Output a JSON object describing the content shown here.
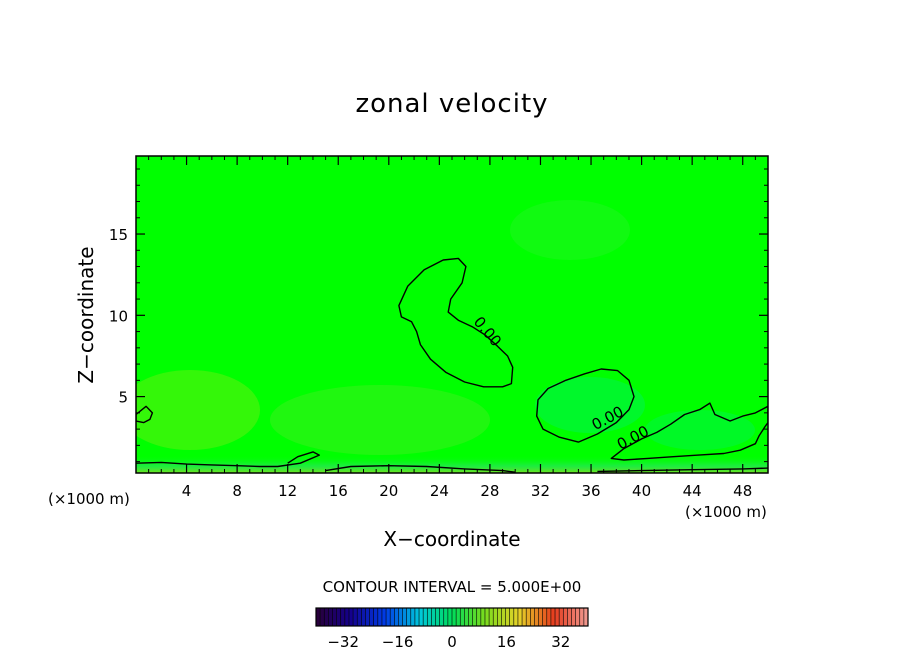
{
  "chart_data": {
    "type": "heatmap",
    "title": "zonal velocity",
    "xlabel": "X−coordinate",
    "ylabel": "Z−coordinate",
    "x_unit_left": "(×1000 m)",
    "x_unit_right": "(×1000 m)",
    "xlim": [
      0,
      50
    ],
    "ylim": [
      0.3,
      19.8
    ],
    "x_ticks": [
      4,
      8,
      12,
      16,
      20,
      24,
      28,
      32,
      36,
      40,
      44,
      48
    ],
    "x_tick_labels": [
      "4",
      "8",
      "12",
      "16",
      "20",
      "24",
      "28",
      "32",
      "36",
      "40",
      "44",
      "48"
    ],
    "y_ticks": [
      5,
      10,
      15
    ],
    "y_tick_labels": [
      "5",
      "10",
      "15"
    ],
    "background_value": 2,
    "contour_label": "0.00",
    "zero_contours": [
      {
        "name": "upper-lobe",
        "points": [
          [
            20.8,
            10.6
          ],
          [
            21.5,
            11.8
          ],
          [
            22.8,
            12.8
          ],
          [
            24.3,
            13.4
          ],
          [
            25.5,
            13.5
          ],
          [
            26.1,
            13.0
          ],
          [
            25.8,
            12.0
          ],
          [
            24.9,
            11.0
          ],
          [
            24.7,
            10.2
          ],
          [
            25.5,
            9.7
          ],
          [
            26.6,
            9.3
          ],
          [
            27.6,
            8.8
          ],
          [
            28.6,
            8.1
          ],
          [
            29.4,
            7.5
          ],
          [
            29.8,
            6.8
          ],
          [
            29.7,
            5.8
          ],
          [
            29.0,
            5.6
          ],
          [
            27.5,
            5.6
          ],
          [
            26.0,
            5.9
          ],
          [
            24.5,
            6.5
          ],
          [
            23.3,
            7.3
          ],
          [
            22.5,
            8.2
          ],
          [
            22.2,
            9.0
          ],
          [
            21.8,
            9.6
          ],
          [
            21.0,
            9.9
          ]
        ],
        "label_at": [
          27.5,
          8.8
        ]
      },
      {
        "name": "lower-right-lobe",
        "points": [
          [
            31.8,
            4.8
          ],
          [
            32.6,
            5.5
          ],
          [
            34.0,
            6.0
          ],
          [
            35.5,
            6.4
          ],
          [
            36.8,
            6.7
          ],
          [
            38.1,
            6.6
          ],
          [
            39.0,
            6.0
          ],
          [
            39.4,
            5.0
          ],
          [
            39.0,
            4.2
          ],
          [
            38.0,
            3.4
          ],
          [
            36.5,
            2.7
          ],
          [
            35.0,
            2.2
          ],
          [
            33.5,
            2.5
          ],
          [
            32.2,
            3.0
          ],
          [
            31.7,
            3.8
          ]
        ],
        "label_at": [
          37.5,
          3.4
        ]
      },
      {
        "name": "right-edge-region",
        "points": [
          [
            50.0,
            4.4
          ],
          [
            49.0,
            4.0
          ],
          [
            48.0,
            3.8
          ],
          [
            47.0,
            3.5
          ],
          [
            45.8,
            3.9
          ],
          [
            45.4,
            4.6
          ],
          [
            44.6,
            4.2
          ],
          [
            43.4,
            3.9
          ],
          [
            42.3,
            3.3
          ],
          [
            41.2,
            2.8
          ],
          [
            40.0,
            2.4
          ],
          [
            38.6,
            1.8
          ],
          [
            37.6,
            1.2
          ],
          [
            38.6,
            1.1
          ],
          [
            40.5,
            1.2
          ],
          [
            42.5,
            1.3
          ],
          [
            44.5,
            1.4
          ],
          [
            46.5,
            1.5
          ],
          [
            47.8,
            1.7
          ],
          [
            49.0,
            2.1
          ],
          [
            49.3,
            2.6
          ],
          [
            49.8,
            3.2
          ],
          [
            50.0,
            3.4
          ]
        ],
        "label_at": [
          39.5,
          2.2
        ]
      },
      {
        "name": "left-edge-region",
        "points": [
          [
            0.0,
            3.9
          ],
          [
            0.8,
            4.4
          ],
          [
            1.3,
            4.0
          ],
          [
            1.1,
            3.6
          ],
          [
            0.6,
            3.4
          ],
          [
            0.0,
            3.5
          ]
        ],
        "label_at": null
      },
      {
        "name": "bottom-band-left",
        "points": [
          [
            0.0,
            0.9
          ],
          [
            2.0,
            0.95
          ],
          [
            4.0,
            0.85
          ],
          [
            6.0,
            0.8
          ],
          [
            8.0,
            0.75
          ],
          [
            9.8,
            0.7
          ],
          [
            11.2,
            0.7
          ],
          [
            13.0,
            0.9
          ],
          [
            14.5,
            1.4
          ],
          [
            14.0,
            1.6
          ],
          [
            12.8,
            1.3
          ],
          [
            12.0,
            0.9
          ]
        ],
        "label_at": null
      },
      {
        "name": "bottom-band-mid",
        "points": [
          [
            15.0,
            0.45
          ],
          [
            17.0,
            0.7
          ],
          [
            20.0,
            0.75
          ],
          [
            23.0,
            0.7
          ],
          [
            26.0,
            0.55
          ],
          [
            29.0,
            0.45
          ],
          [
            30.0,
            0.35
          ]
        ],
        "label_at": null
      },
      {
        "name": "bottom-band-right",
        "points": [
          [
            36.5,
            0.4
          ],
          [
            40.0,
            0.45
          ],
          [
            44.0,
            0.5
          ],
          [
            48.0,
            0.55
          ],
          [
            50.0,
            0.6
          ]
        ],
        "label_at": null
      }
    ],
    "colorbar": {
      "title": "CONTOUR INTERVAL = 5.000E+00",
      "min": -40,
      "max": 40,
      "tick_values": [
        -32,
        -16,
        0,
        16,
        32
      ],
      "tick_labels": [
        "−32",
        "−16",
        "0",
        "16",
        "32"
      ]
    }
  }
}
